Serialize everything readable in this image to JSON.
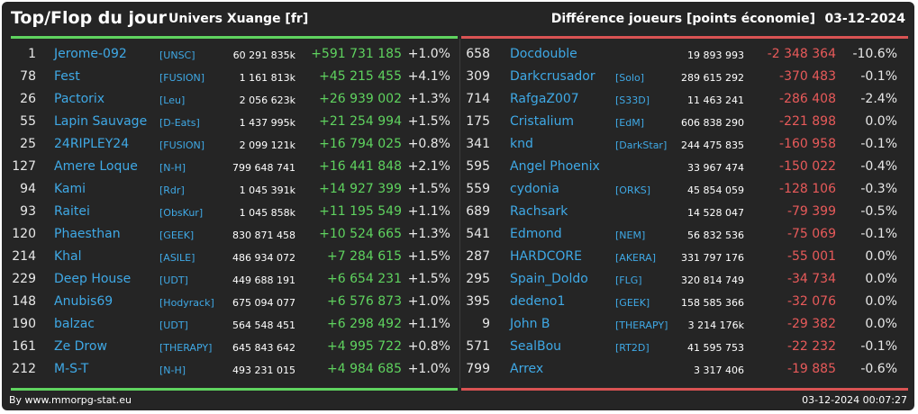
{
  "header": {
    "title": "Top/Flop du jour",
    "subtitle": "Univers Xuange [fr]",
    "diff_label": "Différence joueurs [points économie]",
    "date": "03-12-2024"
  },
  "top": [
    {
      "rank": "1",
      "name": "Jerome-092",
      "ally": "[UNSC]",
      "points": "60 291 835k",
      "delta": "+591 731 185",
      "pct": "+1.0%"
    },
    {
      "rank": "78",
      "name": "Fest",
      "ally": "[FUSION]",
      "points": "1 161 813k",
      "delta": "+45 215 455",
      "pct": "+4.1%"
    },
    {
      "rank": "26",
      "name": "Pactorix",
      "ally": "[Leu]",
      "points": "2 056 623k",
      "delta": "+26 939 002",
      "pct": "+1.3%"
    },
    {
      "rank": "55",
      "name": "Lapin Sauvage",
      "ally": "[D-Eats]",
      "points": "1 437 995k",
      "delta": "+21 254 994",
      "pct": "+1.5%"
    },
    {
      "rank": "25",
      "name": "24RIPLEY24",
      "ally": "[FUSION]",
      "points": "2 099 121k",
      "delta": "+16 794 025",
      "pct": "+0.8%"
    },
    {
      "rank": "127",
      "name": "Amere Loque",
      "ally": "[N-H]",
      "points": "799 648 741",
      "delta": "+16 441 848",
      "pct": "+2.1%"
    },
    {
      "rank": "94",
      "name": "Kami",
      "ally": "[Rdr]",
      "points": "1 045 391k",
      "delta": "+14 927 399",
      "pct": "+1.5%"
    },
    {
      "rank": "93",
      "name": "Raitei",
      "ally": "[ObsKur]",
      "points": "1 045 858k",
      "delta": "+11 195 549",
      "pct": "+1.1%"
    },
    {
      "rank": "120",
      "name": "Phaesthan",
      "ally": "[GEEK]",
      "points": "830 871 458",
      "delta": "+10 524 665",
      "pct": "+1.3%"
    },
    {
      "rank": "214",
      "name": "Khal",
      "ally": "[ASILE]",
      "points": "486 934 072",
      "delta": "+7 284 615",
      "pct": "+1.5%"
    },
    {
      "rank": "229",
      "name": "Deep House",
      "ally": "[UDT]",
      "points": "449 688 191",
      "delta": "+6 654 231",
      "pct": "+1.5%"
    },
    {
      "rank": "148",
      "name": "Anubis69",
      "ally": "[Hodyrack]",
      "points": "675 094 077",
      "delta": "+6 576 873",
      "pct": "+1.0%"
    },
    {
      "rank": "190",
      "name": "balzac",
      "ally": "[UDT]",
      "points": "564 548 451",
      "delta": "+6 298 492",
      "pct": "+1.1%"
    },
    {
      "rank": "161",
      "name": "Ze Drow",
      "ally": "[THERAPY]",
      "points": "645 843 642",
      "delta": "+4 995 722",
      "pct": "+0.8%"
    },
    {
      "rank": "212",
      "name": "M-S-T",
      "ally": "[N-H]",
      "points": "493 231 015",
      "delta": "+4 984 685",
      "pct": "+1.0%"
    }
  ],
  "flop": [
    {
      "rank": "658",
      "name": "Docdouble",
      "ally": "",
      "points": "19 893 993",
      "delta": "-2 348 364",
      "pct": "-10.6%"
    },
    {
      "rank": "309",
      "name": "Darkcrusador",
      "ally": "[Solo]",
      "points": "289 615 292",
      "delta": "-370 483",
      "pct": "-0.1%"
    },
    {
      "rank": "714",
      "name": "RafgaZ007",
      "ally": "[S33D]",
      "points": "11 463 241",
      "delta": "-286 408",
      "pct": "-2.4%"
    },
    {
      "rank": "175",
      "name": "Cristalium",
      "ally": "[EdM]",
      "points": "606 838 290",
      "delta": "-221 898",
      "pct": "0.0%"
    },
    {
      "rank": "341",
      "name": "knd",
      "ally": "[DarkStar]",
      "points": "244 475 835",
      "delta": "-160 958",
      "pct": "-0.1%"
    },
    {
      "rank": "595",
      "name": "Angel Phoenix",
      "ally": "",
      "points": "33 967 474",
      "delta": "-150 022",
      "pct": "-0.4%"
    },
    {
      "rank": "559",
      "name": "cydonia",
      "ally": "[ORKS]",
      "points": "45 854 059",
      "delta": "-128 106",
      "pct": "-0.3%"
    },
    {
      "rank": "689",
      "name": "Rachsark",
      "ally": "",
      "points": "14 528 047",
      "delta": "-79 399",
      "pct": "-0.5%"
    },
    {
      "rank": "541",
      "name": "Edmond",
      "ally": "[NEM]",
      "points": "56 832 536",
      "delta": "-75 069",
      "pct": "-0.1%"
    },
    {
      "rank": "287",
      "name": "HARDCORE",
      "ally": "[AKERA]",
      "points": "331 797 176",
      "delta": "-55 001",
      "pct": "0.0%"
    },
    {
      "rank": "295",
      "name": "Spain_Doldo",
      "ally": "[FLG]",
      "points": "320 814 749",
      "delta": "-34 734",
      "pct": "0.0%"
    },
    {
      "rank": "395",
      "name": "dedeno1",
      "ally": "[GEEK]",
      "points": "158 585 366",
      "delta": "-32 076",
      "pct": "0.0%"
    },
    {
      "rank": "9",
      "name": "John B",
      "ally": "[THERAPY]",
      "points": "3 214 176k",
      "delta": "-29 382",
      "pct": "0.0%"
    },
    {
      "rank": "571",
      "name": "SealBou",
      "ally": "[RT2D]",
      "points": "41 595 753",
      "delta": "-22 232",
      "pct": "-0.1%"
    },
    {
      "rank": "799",
      "name": "Arrex",
      "ally": "",
      "points": "3 317 406",
      "delta": "-19 885",
      "pct": "-0.6%"
    }
  ],
  "footer": {
    "credit": "By www.mmorpg-stat.eu",
    "timestamp": "03-12-2024 00:07:27"
  },
  "colors": {
    "background": "#252525",
    "gain": "#5fd35f",
    "loss": "#e85a5a",
    "link": "#3fa9e6"
  }
}
